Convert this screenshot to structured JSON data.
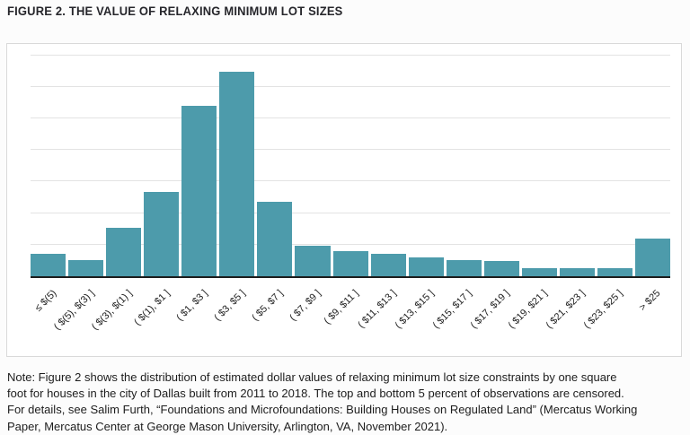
{
  "figure": {
    "title": "FIGURE 2. THE VALUE OF RELAXING MINIMUM LOT SIZES",
    "note_lines": [
      "Note: Figure 2 shows the distribution of estimated dollar values of relaxing minimum lot size constraints by one square",
      "foot for houses in the city of Dallas built from 2011 to 2018. The top and bottom 5 percent of observations are censored.",
      "For details, see Salim Furth, “Foundations and Microfoundations: Building Houses on Regulated Land” (Mercatus Working",
      "Paper, Mercatus Center at George Mason University, Arlington, VA, November 2021)."
    ]
  },
  "chart_data": {
    "type": "bar",
    "title": "FIGURE 2. THE VALUE OF RELAXING MINIMUM LOT SIZES",
    "categories": [
      "≤ $(5)",
      "( $(5), $(3) ]",
      "( $(3), $(1) ]",
      "( $(1), $1 ]",
      "( $1, $3 ]",
      "( $3, $5 ]",
      "( $5, $7 ]",
      "( $7, $9 ]",
      "( $9, $11 ]",
      "( $11, $13 ]",
      "( $13, $15 ]",
      "( $15, $17 ]",
      "( $17, $19 ]",
      "( $19, $21 ]",
      "( $21, $23 ]",
      "( $23, $25 ]",
      "> $25"
    ],
    "values": [
      0.71,
      0.51,
      1.53,
      2.66,
      5.41,
      6.49,
      2.35,
      0.96,
      0.81,
      0.71,
      0.59,
      0.51,
      0.47,
      0.27,
      0.27,
      0.27,
      1.19
    ],
    "value_note": "y-axis has no tick labels; values estimated in gridline units (1 unit = one gridline interval)",
    "xlabel": "",
    "ylabel": "",
    "ylim": [
      0,
      7.42
    ],
    "gridline_interval": 1,
    "grid": "horizontal",
    "legend": "none",
    "bar_color": "#4d9bab",
    "axis_color": "#1c1c1c",
    "gridline_color": "#e3e3e3"
  }
}
